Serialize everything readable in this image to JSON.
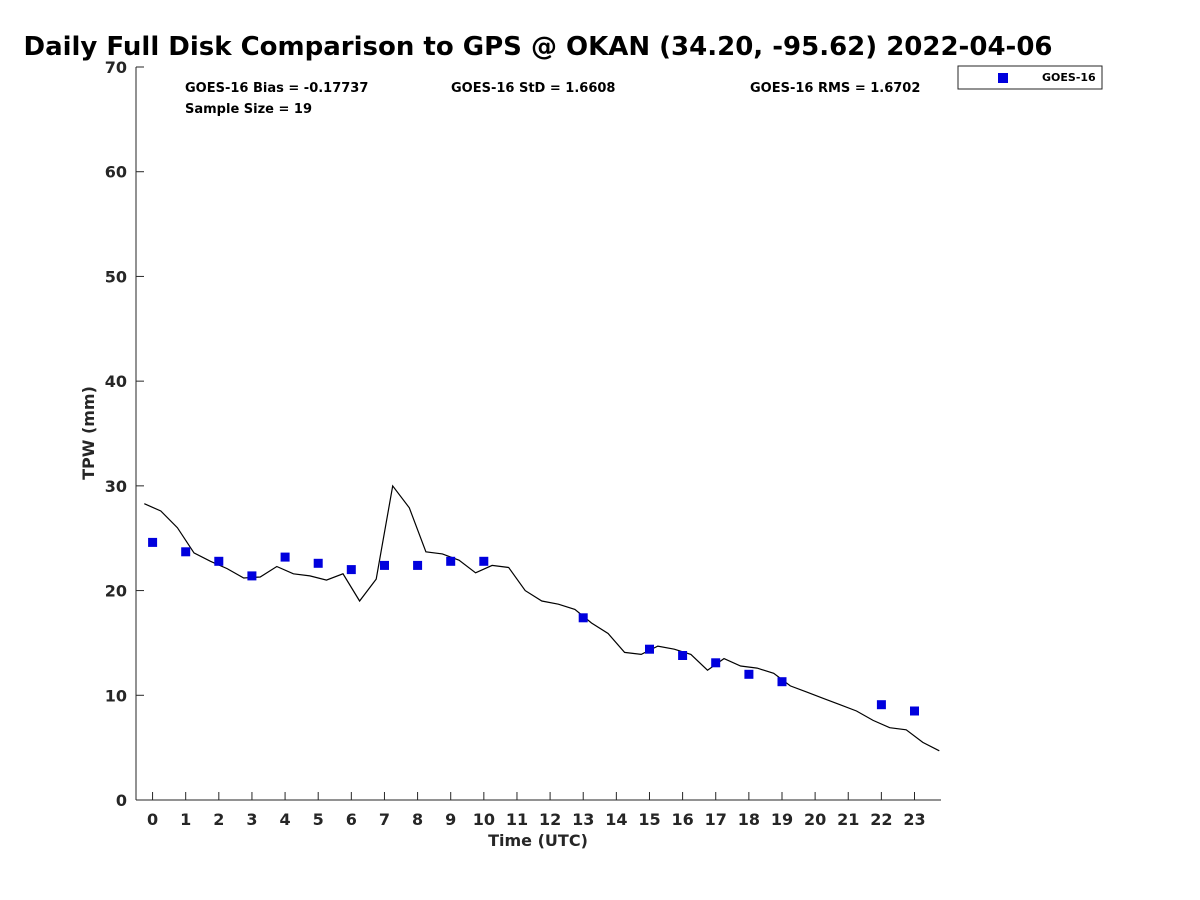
{
  "chart_data": {
    "type": "scatter",
    "title": "Daily Full Disk Comparison to GPS @ OKAN (34.20, -95.62) 2022-04-06",
    "xlabel": "Time (UTC)",
    "ylabel": "TPW (mm)",
    "xlim": [
      -0.5,
      23.8
    ],
    "ylim": [
      0,
      70
    ],
    "x_ticks": [
      0,
      1,
      2,
      3,
      4,
      5,
      6,
      7,
      8,
      9,
      10,
      11,
      12,
      13,
      14,
      15,
      16,
      17,
      18,
      19,
      20,
      21,
      22,
      23
    ],
    "y_ticks": [
      0,
      10,
      20,
      30,
      40,
      50,
      60,
      70
    ],
    "grid": false,
    "legend_position": "top-right outside",
    "stats": {
      "bias": "GOES-16 Bias = -0.17737",
      "std": "GOES-16 StD = 1.6608",
      "rms": "GOES-16 RMS = 1.6702",
      "sample": "Sample Size = 19"
    },
    "series": [
      {
        "name": "GOES-16",
        "kind": "scatter",
        "marker": "square",
        "color": "#0000dd",
        "x": [
          0,
          1,
          2,
          3,
          4,
          5,
          6,
          7,
          8,
          9,
          10,
          13,
          15,
          16,
          17,
          18,
          19,
          22,
          23
        ],
        "y": [
          24.6,
          23.7,
          22.8,
          21.4,
          23.2,
          22.6,
          22.0,
          22.4,
          22.4,
          22.8,
          22.8,
          17.4,
          14.4,
          13.8,
          13.1,
          12.0,
          11.3,
          9.1,
          8.5
        ]
      },
      {
        "name": "",
        "kind": "line",
        "color": "#000000",
        "x": [
          -0.25,
          0.25,
          0.75,
          1.25,
          1.75,
          2.25,
          2.75,
          3.25,
          3.75,
          4.25,
          4.75,
          5.25,
          5.75,
          6.25,
          6.75,
          7.25,
          7.75,
          8.25,
          8.75,
          9.25,
          9.75,
          10.25,
          10.75,
          11.25,
          11.75,
          12.25,
          12.75,
          13.25,
          13.75,
          14.25,
          14.75,
          15.25,
          15.75,
          16.25,
          16.75,
          17.25,
          17.75,
          18.25,
          18.75,
          19.25,
          19.75,
          20.25,
          20.75,
          21.25,
          21.75,
          22.25,
          22.75,
          23.25,
          23.75
        ],
        "y": [
          28.3,
          27.6,
          26.0,
          23.6,
          22.8,
          22.1,
          21.2,
          21.3,
          22.3,
          21.6,
          21.4,
          21.0,
          21.6,
          19.0,
          21.1,
          30.0,
          27.9,
          23.7,
          23.5,
          22.9,
          21.7,
          22.4,
          22.2,
          20.0,
          19.0,
          18.7,
          18.2,
          16.9,
          15.9,
          14.1,
          13.9,
          14.7,
          14.4,
          13.9,
          12.4,
          13.5,
          12.8,
          12.6,
          12.1,
          10.9,
          10.3,
          9.7,
          9.1,
          8.5,
          7.6,
          6.9,
          6.7,
          5.5,
          4.7
        ]
      }
    ]
  }
}
